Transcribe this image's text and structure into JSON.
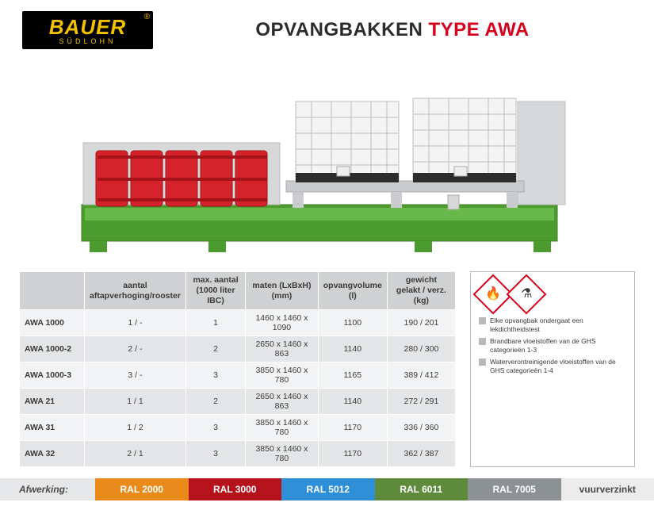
{
  "logo": {
    "brand": "BAUER",
    "sub": "SÜDLOHN",
    "reg": "®",
    "text_color": "#f2c200"
  },
  "title": {
    "part1": "OPVANGBAKKEN ",
    "part2": "TYPE AWA"
  },
  "table": {
    "headers": [
      {
        "l1": "aantal",
        "l2": "aftapverhoging/rooster"
      },
      {
        "l1": "max. aantal",
        "l2": "(1000 liter IBC)"
      },
      {
        "l1": "maten (LxBxH)",
        "l2": "(mm)"
      },
      {
        "l1": "opvangvolume",
        "l2": "(l)"
      },
      {
        "l1": "gewicht",
        "l2": "gelakt / verz. (kg)"
      }
    ],
    "rows": [
      {
        "name": "AWA 1000",
        "c": [
          "1 / -",
          "1",
          "1460 x 1460 x 1090",
          "1100",
          "190 / 201"
        ]
      },
      {
        "name": "AWA 1000-2",
        "c": [
          "2 / -",
          "2",
          "2650 x 1460 x  863",
          "1140",
          "280 / 300"
        ]
      },
      {
        "name": "AWA 1000-3",
        "c": [
          "3 / -",
          "3",
          "3850 x 1460 x  780",
          "1165",
          "389 / 412"
        ]
      },
      {
        "name": "AWA 21",
        "c": [
          "1 / 1",
          "2",
          "2650 x 1460 x  863",
          "1140",
          "272 / 291"
        ]
      },
      {
        "name": "AWA 31",
        "c": [
          "1 / 2",
          "3",
          "3850 x 1460 x  780",
          "1170",
          "336 / 360"
        ]
      },
      {
        "name": "AWA 32",
        "c": [
          "2 / 1",
          "3",
          "3850 x 1460 x  780",
          "1170",
          "362 / 387"
        ]
      }
    ]
  },
  "info": {
    "notes": [
      "Elke opvangbak ondergaat een lekdichtheidstest",
      "Brandbare vloeistoffen van de GHS categorieën 1-3",
      "Waterverontreinigende vloeistoffen van de GHS categorieën 1-4"
    ]
  },
  "finish": {
    "label": "Afwerking:",
    "swatches": [
      {
        "label": "RAL 2000",
        "color": "#e88b1a"
      },
      {
        "label": "RAL 3000",
        "color": "#b5121b"
      },
      {
        "label": "RAL 5012",
        "color": "#2e8fd6"
      },
      {
        "label": "RAL 6011",
        "color": "#5d8a3b"
      },
      {
        "label": "RAL 7005",
        "color": "#8c9194"
      },
      {
        "label": "vuurverzinkt",
        "color": "#ececec",
        "dark": true
      }
    ]
  }
}
